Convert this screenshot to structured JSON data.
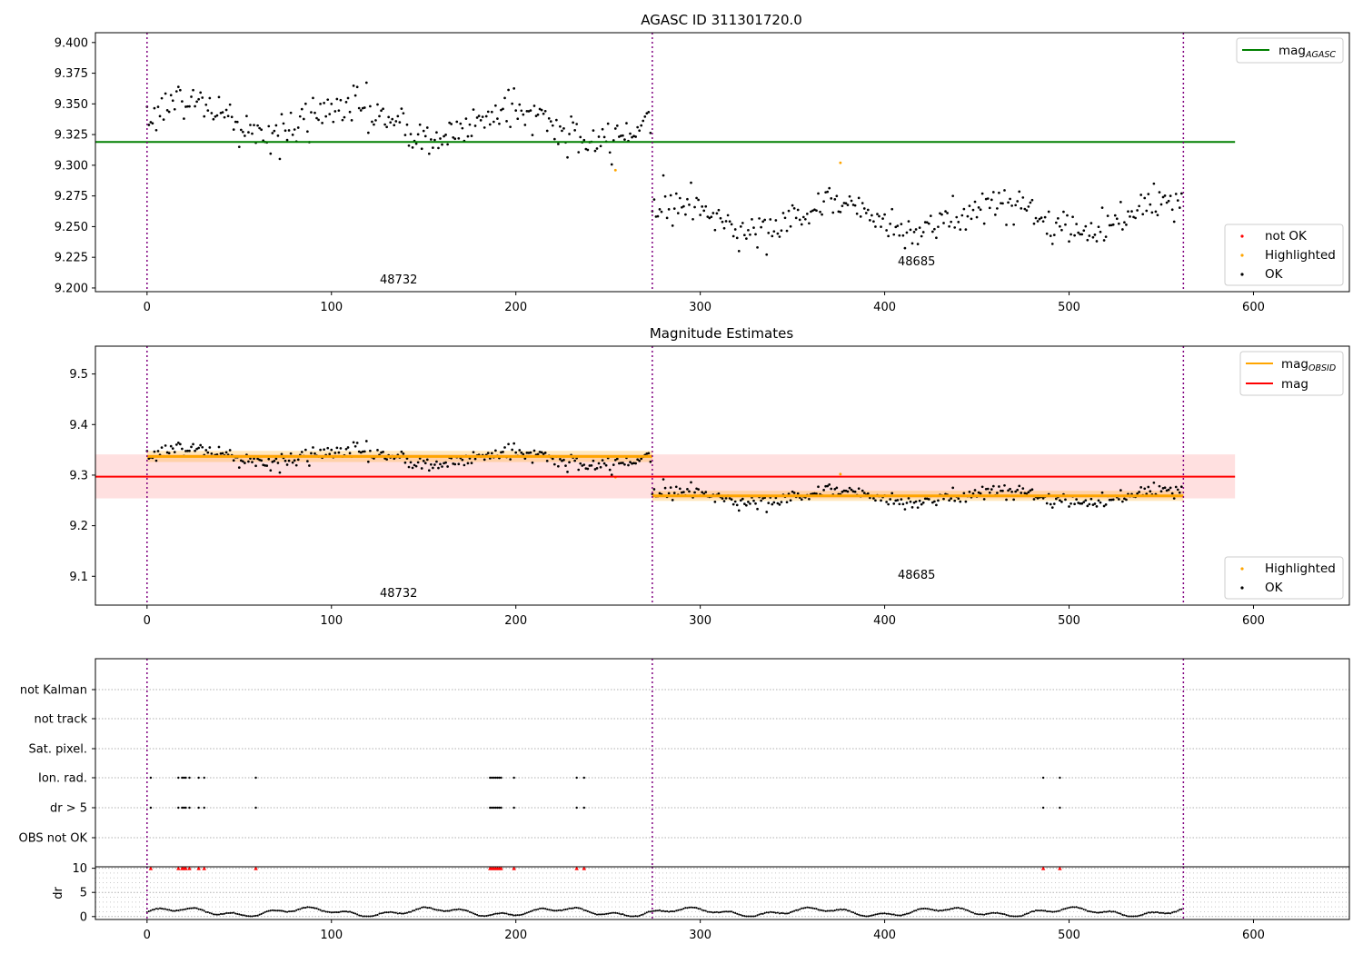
{
  "chart_data": [
    {
      "type": "scatter",
      "title": "AGASC ID 311301720.0",
      "xlim": [
        -28,
        652
      ],
      "ylim": [
        9.197,
        9.408
      ],
      "xticks": [
        0,
        100,
        200,
        300,
        400,
        500,
        600
      ],
      "yticks": [
        9.2,
        9.225,
        9.25,
        9.275,
        9.3,
        9.325,
        9.35,
        9.375,
        9.4
      ],
      "ytick_labels": [
        "9.200",
        "9.225",
        "9.250",
        "9.275",
        "9.300",
        "9.325",
        "9.350",
        "9.375",
        "9.400"
      ],
      "observation_boundaries": [
        0,
        274,
        562
      ],
      "observations": [
        {
          "label": "48732",
          "x_start": 0,
          "x_end": 274,
          "mean": 9.34,
          "sd": 0.015,
          "trend": -0.01
        },
        {
          "label": "48685",
          "x_start": 274,
          "x_end": 562,
          "mean": 9.258,
          "sd": 0.013,
          "trend": 0.0
        }
      ],
      "reference_lines": [
        {
          "name": "mag_AGASC",
          "value": 9.319,
          "x_range": [
            -28,
            590
          ],
          "color": "#008000"
        }
      ],
      "highlighted_points": [
        {
          "x": 254,
          "y": 9.296
        },
        {
          "x": 376,
          "y": 9.302
        }
      ],
      "legends": [
        {
          "position": "top-right",
          "entries": [
            {
              "label": "mag",
              "subscript": "AGASC",
              "kind": "line",
              "color": "#008000"
            }
          ]
        },
        {
          "position": "bottom-right",
          "entries": [
            {
              "label": "not OK",
              "kind": "dot",
              "color": "#ff0000"
            },
            {
              "label": "Highlighted",
              "kind": "dot",
              "color": "#ffa500"
            },
            {
              "label": "OK",
              "kind": "dot",
              "color": "#000000"
            }
          ]
        }
      ]
    },
    {
      "type": "scatter",
      "title": "Magnitude Estimates",
      "xlim": [
        -28,
        652
      ],
      "ylim": [
        9.043,
        9.555
      ],
      "xticks": [
        0,
        100,
        200,
        300,
        400,
        500,
        600
      ],
      "yticks": [
        9.1,
        9.2,
        9.3,
        9.4,
        9.5
      ],
      "ytick_labels": [
        "9.1",
        "9.2",
        "9.3",
        "9.4",
        "9.5"
      ],
      "observation_boundaries": [
        0,
        274,
        562
      ],
      "obsid_means": [
        {
          "label": "48732",
          "x_start": 0,
          "x_end": 274,
          "mean": 9.337,
          "band": [
            9.326,
            9.348
          ]
        },
        {
          "label": "48685",
          "x_start": 274,
          "x_end": 562,
          "mean": 9.259,
          "band": [
            9.249,
            9.269
          ]
        }
      ],
      "mag": {
        "value": 9.297,
        "band": [
          9.254,
          9.341
        ],
        "x_range": [
          -28,
          590
        ]
      },
      "legends": [
        {
          "position": "top-right",
          "entries": [
            {
              "label": "mag",
              "subscript": "OBSID",
              "kind": "line",
              "color": "#ffa500"
            },
            {
              "label": "mag",
              "subscript": "",
              "kind": "line",
              "color": "#ff0000"
            }
          ]
        },
        {
          "position": "bottom-right",
          "entries": [
            {
              "label": "Highlighted",
              "kind": "dot",
              "color": "#ffa500"
            },
            {
              "label": "OK",
              "kind": "dot",
              "color": "#000000"
            }
          ]
        }
      ]
    },
    {
      "type": "scatter",
      "title": "",
      "xlim": [
        -28,
        652
      ],
      "flag_rows": [
        "not Kalman",
        "not track",
        "Sat. pixel.",
        "Ion. rad.",
        "dr > 5",
        "OBS not OK"
      ],
      "flagged_x": [
        2,
        17,
        19,
        20,
        21,
        23,
        28,
        31,
        59,
        186,
        187,
        188,
        189,
        190,
        191,
        192,
        199,
        233,
        237,
        486,
        495
      ],
      "flagged_rows": [
        "Ion. rad.",
        "dr > 5"
      ]
    },
    {
      "type": "scatter",
      "title": "",
      "xlim": [
        -28,
        652
      ],
      "ylim": [
        -0.6,
        10.3
      ],
      "ylabel": "dr",
      "xticks": [
        0,
        100,
        200,
        300,
        400,
        500,
        600
      ],
      "yticks": [
        0,
        5,
        10
      ],
      "ytick_labels": [
        "0",
        "5",
        "10"
      ],
      "dr_typical_range": [
        0.05,
        2.2
      ],
      "clipped_value": 10,
      "clipped_x": [
        2,
        17,
        19,
        20,
        21,
        23,
        28,
        31,
        59,
        186,
        187,
        188,
        189,
        190,
        191,
        192,
        199,
        233,
        237,
        486,
        495
      ]
    }
  ]
}
